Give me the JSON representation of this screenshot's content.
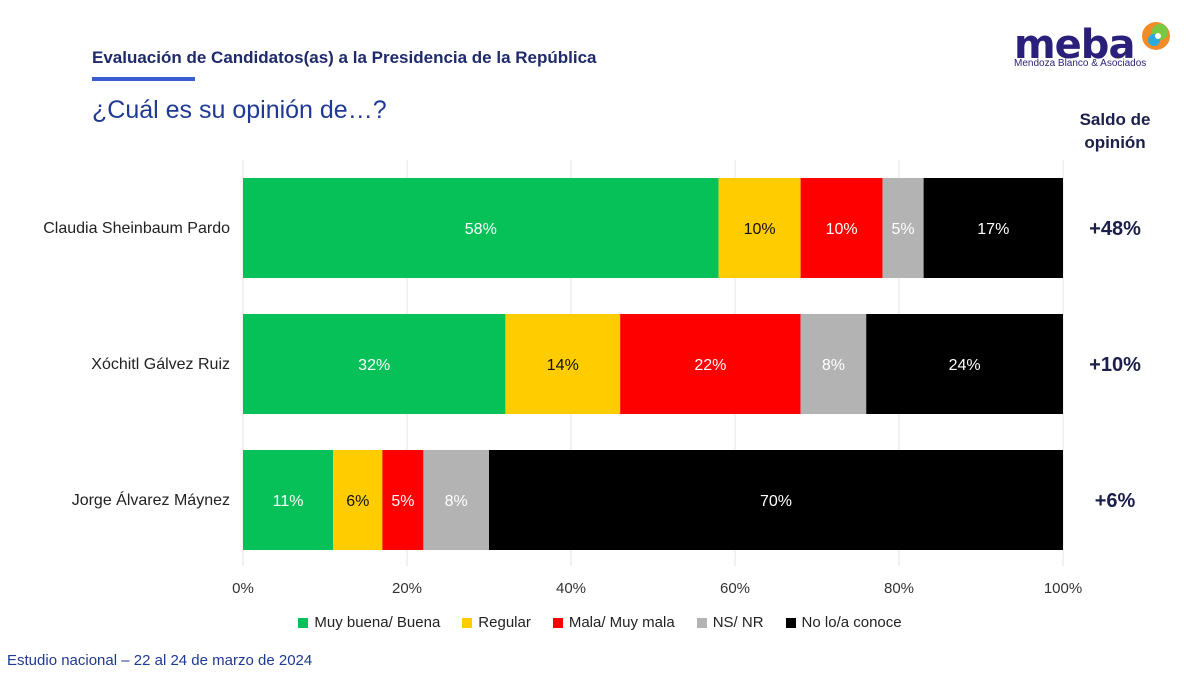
{
  "header": {
    "title": "Evaluación de Candidatos(as) a la Presidencia de la República",
    "question": "¿Cuál es su opinión de…?"
  },
  "logo": {
    "word": "meba",
    "tagline": "Mendoza Blanco & Asociados"
  },
  "saldo_header": "Saldo de opinión",
  "footer": "Estudio nacional – 22 al 24 de marzo de 2024",
  "colors": {
    "muy_buena": "#06c058",
    "regular": "#ffcc00",
    "mala": "#ff0000",
    "nsnr": "#b3b3b3",
    "no_conoce": "#000000",
    "title": "#1f2a6b",
    "accent": "#3b5bd0"
  },
  "chart_data": {
    "type": "bar",
    "orientation": "horizontal",
    "stacked": true,
    "categories": [
      "Claudia Sheinbaum Pardo",
      "Xóchitl Gálvez Ruiz",
      "Jorge Álvarez Máynez"
    ],
    "series": [
      {
        "name": "Muy buena/ Buena",
        "color": "#06c058",
        "values": [
          58,
          32,
          11
        ],
        "labels": [
          "58%",
          "32%",
          "11%"
        ]
      },
      {
        "name": "Regular",
        "color": "#ffcc00",
        "values": [
          10,
          14,
          6
        ],
        "labels": [
          "10%",
          "14%",
          "6%"
        ]
      },
      {
        "name": "Mala/ Muy mala",
        "color": "#ff0000",
        "values": [
          10,
          22,
          5
        ],
        "labels": [
          "10%",
          "22%",
          "5%"
        ]
      },
      {
        "name": "NS/ NR",
        "color": "#b3b3b3",
        "values": [
          5,
          8,
          8
        ],
        "labels": [
          "5%",
          "8%",
          "8%"
        ]
      },
      {
        "name": "No lo/a conoce",
        "color": "#000000",
        "values": [
          17,
          24,
          70
        ],
        "labels": [
          "17%",
          "24%",
          "70%"
        ]
      }
    ],
    "saldo": [
      "+48%",
      "+10%",
      "+6%"
    ],
    "xlim": [
      0,
      100
    ],
    "xticks": [
      "0%",
      "20%",
      "40%",
      "60%",
      "80%",
      "100%"
    ],
    "grid": true,
    "legend_position": "bottom"
  }
}
